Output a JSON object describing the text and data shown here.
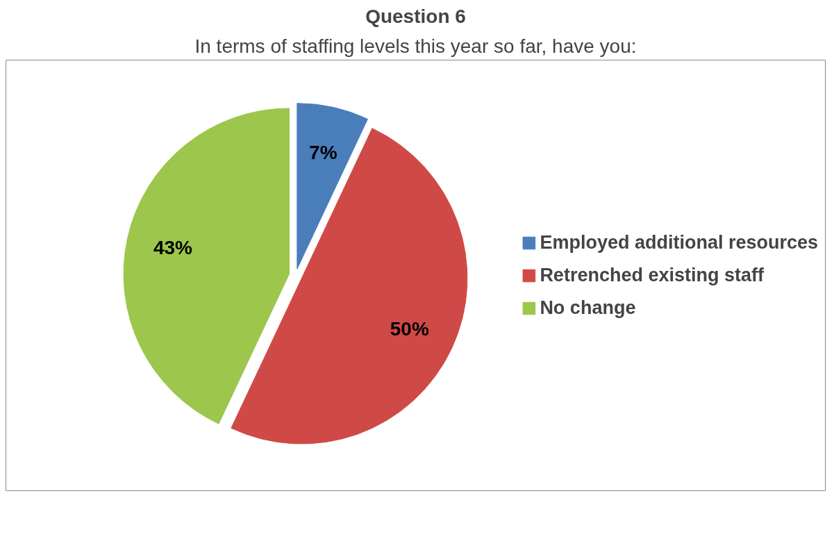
{
  "chart_data": {
    "type": "pie",
    "title": "Question 6",
    "subtitle": "In terms of staffing levels this year so far, have you:",
    "categories": [
      "Employed additional resources",
      "Retrenched existing staff",
      "No change"
    ],
    "values": [
      7,
      50,
      43
    ],
    "value_labels": [
      "7%",
      "50%",
      "43%"
    ],
    "colors": [
      "#4a7ebb",
      "#cf4a46",
      "#9cc64c"
    ],
    "legend": "right"
  }
}
